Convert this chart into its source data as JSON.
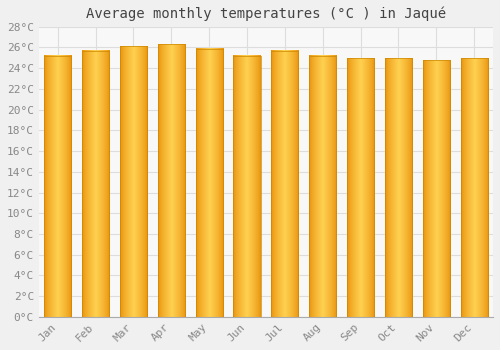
{
  "title": "Average monthly temperatures (°C ) in Jaqué",
  "months": [
    "Jan",
    "Feb",
    "Mar",
    "Apr",
    "May",
    "Jun",
    "Jul",
    "Aug",
    "Sep",
    "Oct",
    "Nov",
    "Dec"
  ],
  "values": [
    25.2,
    25.7,
    26.1,
    26.3,
    25.9,
    25.2,
    25.7,
    25.2,
    25.0,
    25.0,
    24.8,
    25.0
  ],
  "bar_color_left": "#E8900A",
  "bar_color_center": "#FFD050",
  "bar_color_right": "#E8900A",
  "ylim": [
    0,
    28
  ],
  "ytick_step": 2,
  "background_color": "#f0f0f0",
  "plot_bg_color": "#f8f8f8",
  "grid_color": "#dddddd",
  "title_fontsize": 10,
  "tick_fontsize": 8,
  "bar_width": 0.72
}
